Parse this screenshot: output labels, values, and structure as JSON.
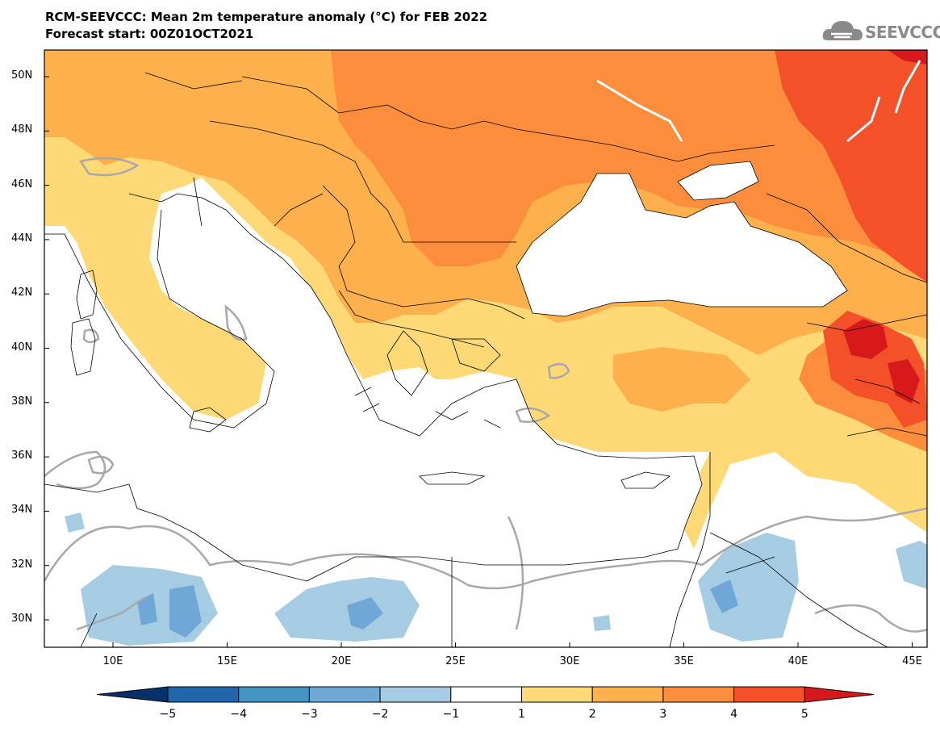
{
  "title": {
    "line1": "RCM-SEEVCCC: Mean 2m temperature anomaly (°C) for FEB 2022",
    "line2": "Forecast start: 00Z01OCT2021"
  },
  "logo": {
    "text": "SEEVCCC",
    "icon": "cloud-logo-icon"
  },
  "map": {
    "lat_ticks": [
      "50N",
      "48N",
      "46N",
      "44N",
      "42N",
      "40N",
      "38N",
      "36N",
      "34N",
      "32N",
      "30N"
    ],
    "lon_ticks": [
      "10E",
      "15E",
      "20E",
      "25E",
      "30E",
      "35E",
      "40E",
      "45E"
    ],
    "lat_values": [
      50,
      48,
      46,
      44,
      42,
      40,
      38,
      36,
      34,
      32,
      30
    ],
    "lon_values": [
      10,
      15,
      20,
      25,
      30,
      35,
      40,
      45
    ]
  },
  "colorbar": {
    "labels": [
      "−5",
      "−4",
      "−3",
      "−2",
      "−1",
      "1",
      "2",
      "3",
      "4",
      "5"
    ],
    "colors": [
      "#08306b",
      "#2166ac",
      "#4393c3",
      "#6fa8d6",
      "#a6cce3",
      "#ffffff",
      "#fed976",
      "#fdb04b",
      "#fc8d3c",
      "#f4502a",
      "#d7191c"
    ]
  }
}
